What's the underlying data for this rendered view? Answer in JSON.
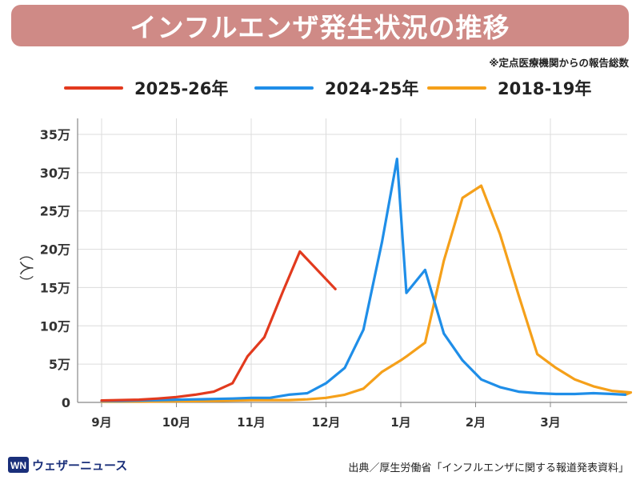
{
  "title": "インフルエンザ発生状況の推移",
  "note": "※定点医療機関からの報告総数",
  "source": "出典／厚生労働省「インフルエンザに関する報道発表資料」",
  "brand": "ウェザーニュース",
  "chart_data": {
    "type": "line",
    "ylabel": "（人）",
    "ylim": [
      0,
      350000
    ],
    "yticks": [
      {
        "value": 0,
        "label": "0"
      },
      {
        "value": 50000,
        "label": "5万"
      },
      {
        "value": 100000,
        "label": "10万"
      },
      {
        "value": 150000,
        "label": "15万"
      },
      {
        "value": 200000,
        "label": "20万"
      },
      {
        "value": 250000,
        "label": "25万"
      },
      {
        "value": 300000,
        "label": "30万"
      },
      {
        "value": 350000,
        "label": "35万"
      }
    ],
    "xlim": [
      0,
      30
    ],
    "xticks": [
      {
        "value": 0,
        "label": "9月"
      },
      {
        "value": 4,
        "label": "10月"
      },
      {
        "value": 8,
        "label": "11月"
      },
      {
        "value": 12,
        "label": "12月"
      },
      {
        "value": 16,
        "label": "1月"
      },
      {
        "value": 20,
        "label": "2月"
      },
      {
        "value": 24,
        "label": "3月"
      }
    ],
    "legend_position": "top",
    "grid": true,
    "series": [
      {
        "name": "2025-26年",
        "color": "#e23a1e",
        "points": [
          [
            0,
            2500
          ],
          [
            1,
            3000
          ],
          [
            2,
            3500
          ],
          [
            3,
            5000
          ],
          [
            4,
            7000
          ],
          [
            5,
            10000
          ],
          [
            6,
            14000
          ],
          [
            7,
            25000
          ],
          [
            7.8,
            60000
          ],
          [
            8.7,
            85000
          ],
          [
            9.7,
            145000
          ],
          [
            10.6,
            197000
          ],
          [
            12.5,
            148000
          ]
        ]
      },
      {
        "name": "2024-25年",
        "color": "#1f8ee8",
        "points": [
          [
            0,
            2000
          ],
          [
            1,
            2000
          ],
          [
            2,
            2500
          ],
          [
            3,
            3000
          ],
          [
            4,
            3500
          ],
          [
            5,
            4000
          ],
          [
            6,
            4500
          ],
          [
            7,
            5000
          ],
          [
            8,
            6000
          ],
          [
            9,
            6000
          ],
          [
            10,
            10000
          ],
          [
            11,
            12000
          ],
          [
            12,
            25000
          ],
          [
            13,
            45000
          ],
          [
            14,
            95000
          ],
          [
            15,
            210000
          ],
          [
            15.8,
            318000
          ],
          [
            16.3,
            143000
          ],
          [
            17.3,
            173000
          ],
          [
            18.3,
            90000
          ],
          [
            19.3,
            55000
          ],
          [
            20.3,
            30000
          ],
          [
            21.3,
            20000
          ],
          [
            22.3,
            14000
          ],
          [
            23.3,
            12000
          ],
          [
            24.3,
            11000
          ],
          [
            25.3,
            11000
          ],
          [
            26.3,
            12000
          ],
          [
            27.3,
            11000
          ],
          [
            28,
            10000
          ]
        ]
      },
      {
        "name": "2018-19年",
        "color": "#f5a01a",
        "points": [
          [
            0,
            1000
          ],
          [
            2,
            1000
          ],
          [
            4,
            1500
          ],
          [
            6,
            2000
          ],
          [
            8,
            3000
          ],
          [
            10,
            3000
          ],
          [
            11,
            4000
          ],
          [
            12,
            6000
          ],
          [
            13,
            10000
          ],
          [
            14,
            18000
          ],
          [
            15,
            40000
          ],
          [
            16,
            55000
          ],
          [
            16.3,
            60000
          ],
          [
            17.3,
            78000
          ],
          [
            18.3,
            185000
          ],
          [
            19.3,
            267000
          ],
          [
            20.3,
            283000
          ],
          [
            21.3,
            220000
          ],
          [
            22.3,
            140000
          ],
          [
            23.3,
            63000
          ],
          [
            24.3,
            45000
          ],
          [
            25.3,
            30000
          ],
          [
            26.3,
            21000
          ],
          [
            27.3,
            15000
          ],
          [
            28.3,
            13000
          ],
          [
            28,
            10000
          ]
        ]
      }
    ]
  }
}
